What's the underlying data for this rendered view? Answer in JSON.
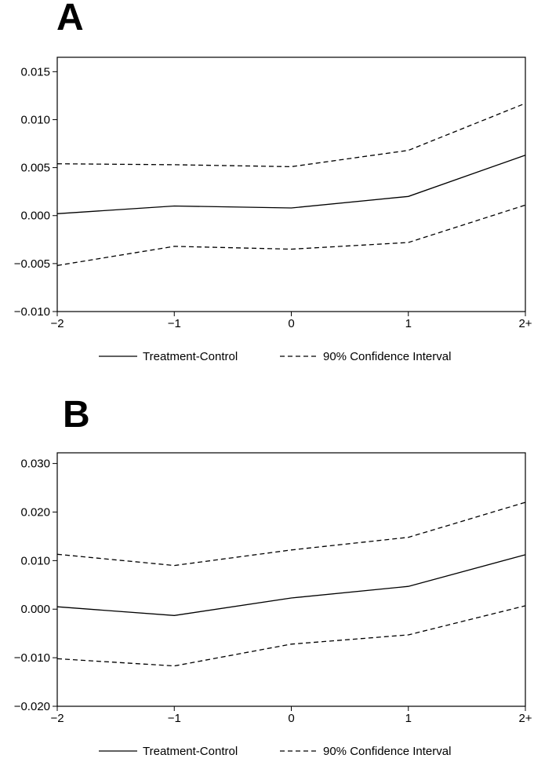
{
  "chart_data": [
    {
      "type": "line",
      "panel_label": "A",
      "categories": [
        "−2",
        "−1",
        "0",
        "1",
        "2+"
      ],
      "series": [
        {
          "name": "Treatment-Control",
          "style": "solid",
          "values": [
            0.0002,
            0.001,
            0.0008,
            0.002,
            0.0063
          ]
        },
        {
          "name": "90% Confidence Interval",
          "style": "dashed",
          "role": "upper",
          "values": [
            0.0054,
            0.0053,
            0.0051,
            0.0068,
            0.0117
          ]
        },
        {
          "name": "90% Confidence Interval",
          "style": "dashed",
          "role": "lower",
          "values": [
            -0.0052,
            -0.0032,
            -0.0035,
            -0.0028,
            0.0011
          ]
        }
      ],
      "yticks": [
        "−0.010",
        "−0.005",
        "0.000",
        "0.005",
        "0.010",
        "0.015"
      ],
      "ytick_values": [
        -0.01,
        -0.005,
        0.0,
        0.005,
        0.01,
        0.015
      ],
      "ylim": [
        -0.01,
        0.0165
      ],
      "grid": false,
      "legend_position": "bottom",
      "legend": [
        "Treatment-Control",
        "90% Confidence Interval"
      ]
    },
    {
      "type": "line",
      "panel_label": "B",
      "categories": [
        "−2",
        "−1",
        "0",
        "1",
        "2+"
      ],
      "series": [
        {
          "name": "Treatment-Control",
          "style": "solid",
          "values": [
            0.0005,
            -0.0013,
            0.0023,
            0.0047,
            0.0112
          ]
        },
        {
          "name": "90% Confidence Interval",
          "style": "dashed",
          "role": "upper",
          "values": [
            0.0113,
            0.009,
            0.0122,
            0.0148,
            0.022
          ]
        },
        {
          "name": "90% Confidence Interval",
          "style": "dashed",
          "role": "lower",
          "values": [
            -0.0102,
            -0.0117,
            -0.0072,
            -0.0053,
            0.0007
          ]
        }
      ],
      "yticks": [
        "−0.020",
        "−0.010",
        "0.000",
        "0.010",
        "0.020",
        "0.030"
      ],
      "ytick_values": [
        -0.02,
        -0.01,
        0.0,
        0.01,
        0.02,
        0.03
      ],
      "ylim": [
        -0.02,
        0.0322
      ],
      "grid": false,
      "legend_position": "bottom",
      "legend": [
        "Treatment-Control",
        "90% Confidence Interval"
      ]
    }
  ]
}
